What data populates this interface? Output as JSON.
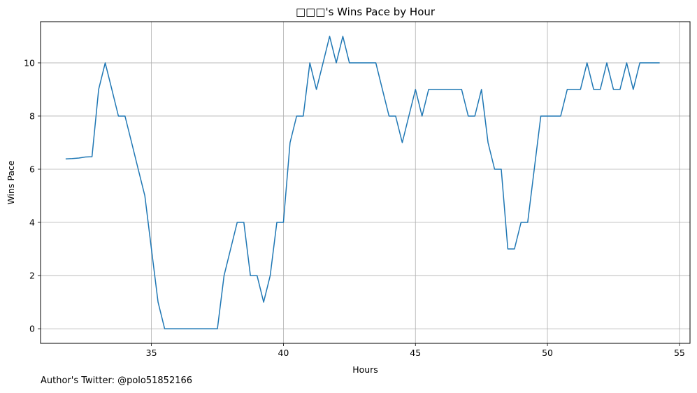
{
  "chart_data": {
    "type": "line",
    "title": "□□□'s Wins Pace by Hour",
    "xlabel": "Hours",
    "ylabel": "Wins Pace",
    "xlim": [
      30.8,
      55.4
    ],
    "ylim": [
      -0.55,
      11.55
    ],
    "xticks": [
      35,
      40,
      45,
      50,
      55
    ],
    "yticks": [
      0,
      2,
      4,
      6,
      8,
      10
    ],
    "grid": true,
    "series": [
      {
        "color": "#1f77b4",
        "x": [
          31.75,
          32.0,
          32.25,
          32.5,
          32.75,
          33.0,
          33.25,
          33.5,
          33.75,
          34.0,
          34.25,
          34.5,
          34.75,
          35.0,
          35.25,
          35.5,
          35.75,
          36.0,
          36.25,
          36.5,
          36.75,
          37.0,
          37.25,
          37.5,
          37.75,
          38.0,
          38.25,
          38.5,
          38.75,
          39.0,
          39.25,
          39.5,
          39.75,
          40.0,
          40.25,
          40.5,
          40.75,
          41.0,
          41.25,
          41.5,
          41.75,
          42.0,
          42.25,
          42.5,
          42.75,
          43.0,
          43.25,
          43.5,
          43.75,
          44.0,
          44.25,
          44.5,
          44.75,
          45.0,
          45.25,
          45.5,
          45.75,
          46.0,
          46.25,
          46.5,
          46.75,
          47.0,
          47.25,
          47.5,
          47.75,
          48.0,
          48.25,
          48.5,
          48.75,
          49.0,
          49.25,
          49.5,
          49.75,
          50.0,
          50.25,
          50.5,
          50.75,
          51.0,
          51.25,
          51.5,
          51.75,
          52.0,
          52.25,
          52.5,
          52.75,
          53.0,
          53.25,
          53.5,
          53.75,
          54.0,
          54.25
        ],
        "values": [
          6.39,
          6.4,
          6.42,
          6.46,
          6.47,
          9,
          10,
          9,
          8,
          8,
          7,
          6,
          5,
          3,
          1,
          0,
          0,
          0,
          0,
          0,
          0,
          0,
          0,
          0,
          2,
          3,
          4,
          4,
          2,
          2,
          1,
          2,
          4,
          4,
          7,
          8,
          8,
          10,
          9,
          10,
          11,
          10,
          11,
          10,
          10,
          10,
          10,
          10,
          9,
          8,
          8,
          7,
          8,
          9,
          8,
          9,
          9,
          9,
          9,
          9,
          9,
          8,
          8,
          9,
          7,
          6,
          6,
          3,
          3,
          4,
          4,
          6,
          8,
          8,
          8,
          8,
          9,
          9,
          9,
          10,
          9,
          9,
          10,
          9,
          9,
          10,
          9,
          10,
          10,
          10,
          10
        ]
      }
    ]
  },
  "footer": {
    "text": "Author's Twitter: @polo51852166"
  }
}
